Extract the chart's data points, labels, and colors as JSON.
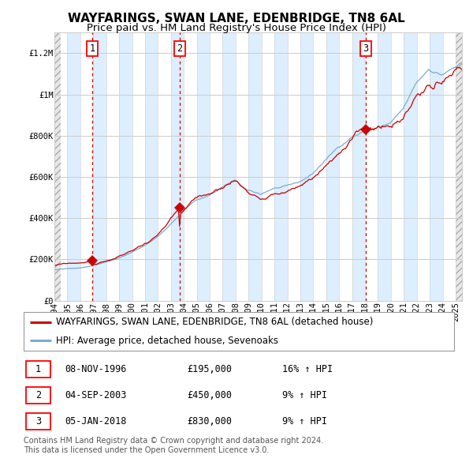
{
  "title": "WAYFARINGS, SWAN LANE, EDENBRIDGE, TN8 6AL",
  "subtitle": "Price paid vs. HM Land Registry's House Price Index (HPI)",
  "ylim": [
    0,
    1300000
  ],
  "yticks": [
    0,
    200000,
    400000,
    600000,
    800000,
    1000000,
    1200000
  ],
  "ytick_labels": [
    "£0",
    "£200K",
    "£400K",
    "£600K",
    "£800K",
    "£1M",
    "£1.2M"
  ],
  "sale_date_nums": [
    1996.917,
    2003.667,
    2018.042
  ],
  "sale_prices": [
    195000,
    450000,
    830000
  ],
  "sale_labels": [
    "1",
    "2",
    "3"
  ],
  "legend_line1": "WAYFARINGS, SWAN LANE, EDENBRIDGE, TN8 6AL (detached house)",
  "legend_line2": "HPI: Average price, detached house, Sevenoaks",
  "table_rows": [
    [
      "1",
      "08-NOV-1996",
      "£195,000",
      "16% ↑ HPI"
    ],
    [
      "2",
      "04-SEP-2003",
      "£450,000",
      "9% ↑ HPI"
    ],
    [
      "3",
      "05-JAN-2018",
      "£830,000",
      "9% ↑ HPI"
    ]
  ],
  "footnote": "Contains HM Land Registry data © Crown copyright and database right 2024.\nThis data is licensed under the Open Government Licence v3.0.",
  "red_color": "#cc0000",
  "blue_color": "#7aadcf",
  "bg_light_color": "#ddeeff",
  "bg_white": "#ffffff",
  "grid_color": "#cccccc",
  "hatch_bg": "#e8e8e8",
  "title_fontsize": 11,
  "subtitle_fontsize": 9.5,
  "tick_fontsize": 7.5,
  "legend_fontsize": 8.5,
  "table_fontsize": 8.5,
  "footnote_fontsize": 7
}
